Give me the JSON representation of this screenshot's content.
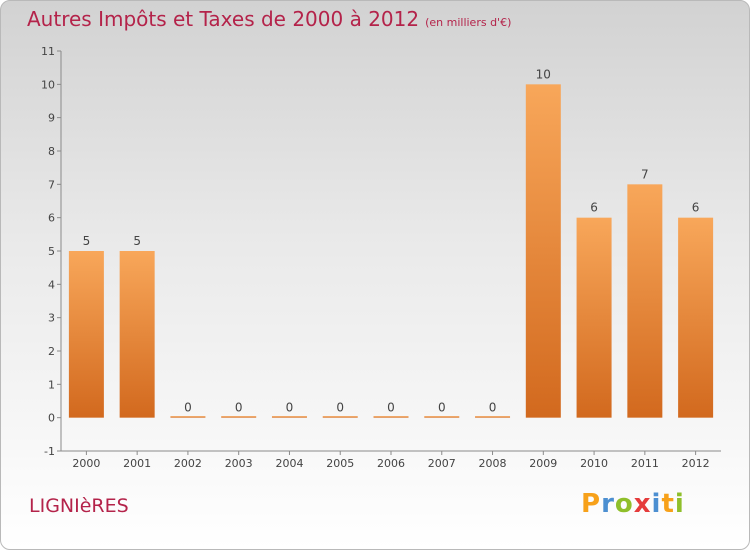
{
  "title": "Autres Impôts et Taxes de 2000 à 2012",
  "unit": "(en milliers d'€)",
  "location": "LIGNIèRES",
  "brand": {
    "letters": [
      "P",
      "r",
      "o",
      "x",
      "i",
      "t",
      "i"
    ],
    "colors": [
      "#f7a11a",
      "#4c8fd1",
      "#8fbf2a",
      "#e53b3b",
      "#4c8fd1",
      "#f7a11a",
      "#8fbf2a"
    ]
  },
  "colors": {
    "bar_top": "#f8a75a",
    "bar_bottom": "#d2691e",
    "title": "#b4234a"
  },
  "chart_data": {
    "type": "bar",
    "title": "Autres Impôts et Taxes de 2000 à 2012",
    "xlabel": "",
    "ylabel": "",
    "categories": [
      "2000",
      "2001",
      "2002",
      "2003",
      "2004",
      "2005",
      "2006",
      "2007",
      "2008",
      "2009",
      "2010",
      "2011",
      "2012"
    ],
    "values": [
      5,
      5,
      0,
      0,
      0,
      0,
      0,
      0,
      0,
      10,
      6,
      7,
      6
    ],
    "ylim": [
      -1,
      11
    ],
    "yticks": [
      "-1",
      "0",
      "1",
      "2",
      "3",
      "4",
      "5",
      "6",
      "7",
      "8",
      "9",
      "10",
      "11"
    ],
    "grid": false,
    "data_labels": true
  }
}
